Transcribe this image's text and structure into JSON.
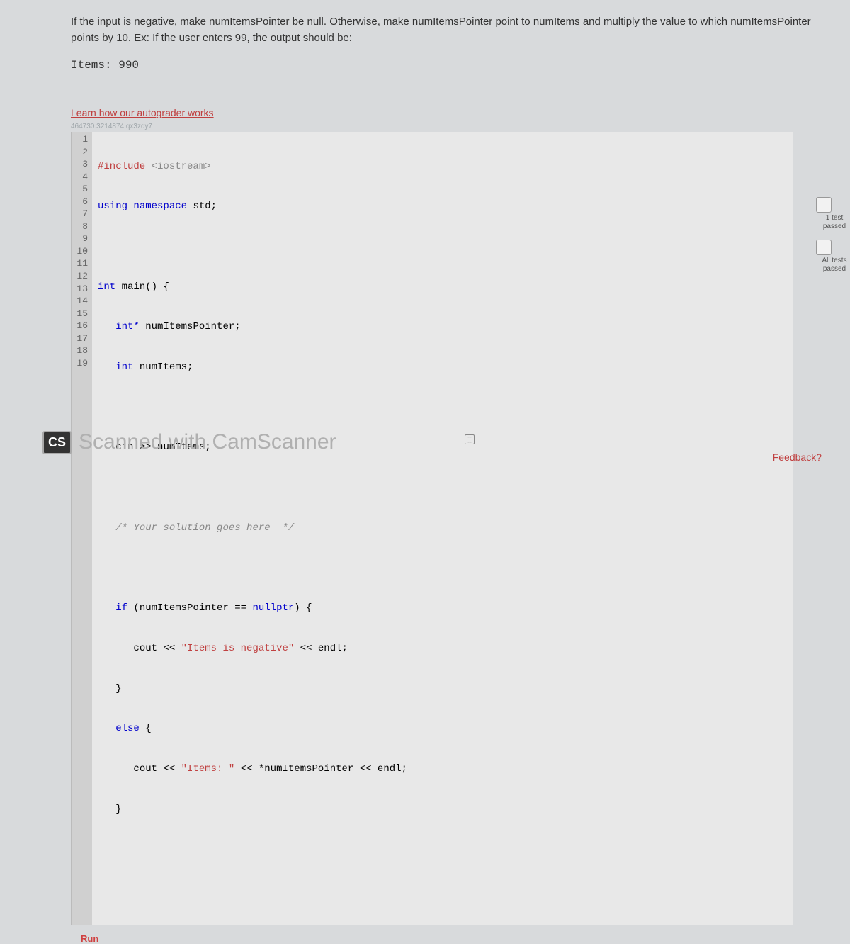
{
  "problem": {
    "description": "If the input is negative, make numItemsPointer be null. Otherwise, make numItemsPointer point to numItems and multiply the value to which numItemsPointer points by 10. Ex: If the user enters 99, the output should be:",
    "example_output": "Items: 990"
  },
  "autograder_link": "Learn how our autograder works",
  "code_id": "464730.3214874.qx3zqy7",
  "code": {
    "line_numbers": [
      "1",
      "2",
      "3",
      "4",
      "5",
      "6",
      "7",
      "8",
      "9",
      "10",
      "11",
      "12",
      "13",
      "14",
      "15",
      "16",
      "17",
      "18",
      "19"
    ],
    "tokens": {
      "include": "#include",
      "iostream": "<iostream>",
      "using": "using",
      "namespace": "namespace",
      "std": "std",
      "int": "int",
      "main": "main",
      "intptr": "int*",
      "numItemsPointer": "numItemsPointer",
      "numItems": "numItems",
      "cin": "cin",
      "cout": "cout",
      "comment": "/* Your solution goes here  */",
      "if": "if",
      "nullptr": "nullptr",
      "str1": "\"Items is negative\"",
      "endl": "endl",
      "else": "else",
      "str2": "\"Items: \""
    }
  },
  "badges": {
    "test1": "1 test passed",
    "alltests": "All tests passed"
  },
  "run_button": "Run",
  "watermark": {
    "badge": "CS",
    "text": "Scanned with CamScanner"
  },
  "feedback": "Feedback?",
  "colors": {
    "bg": "#d8dadc",
    "link": "#c04040",
    "keyword": "#0000cc",
    "string": "#c04040",
    "comment": "#888888"
  }
}
